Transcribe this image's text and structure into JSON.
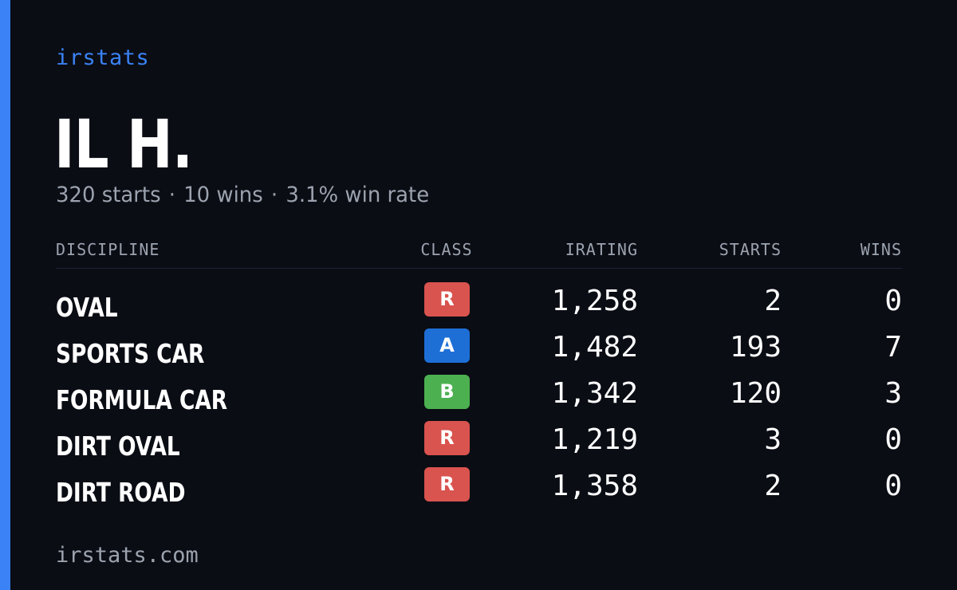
{
  "brand": "irstats",
  "driver": {
    "name": "IL H.",
    "starts_text": "320 starts",
    "wins_text": "10 wins",
    "win_rate_text": "3.1% win rate",
    "separator": "·"
  },
  "table": {
    "headers": {
      "discipline": "DISCIPLINE",
      "class": "CLASS",
      "irating": "IRATING",
      "starts": "STARTS",
      "wins": "WINS"
    },
    "rows": [
      {
        "discipline": "OVAL",
        "class": "R",
        "class_color": "#d9534f",
        "irating": "1,258",
        "starts": "2",
        "wins": "0"
      },
      {
        "discipline": "SPORTS CAR",
        "class": "A",
        "class_color": "#1d6fd6",
        "irating": "1,482",
        "starts": "193",
        "wins": "7"
      },
      {
        "discipline": "FORMULA CAR",
        "class": "B",
        "class_color": "#4caf50",
        "irating": "1,342",
        "starts": "120",
        "wins": "3"
      },
      {
        "discipline": "DIRT OVAL",
        "class": "R",
        "class_color": "#d9534f",
        "irating": "1,219",
        "starts": "3",
        "wins": "0"
      },
      {
        "discipline": "DIRT ROAD",
        "class": "R",
        "class_color": "#d9534f",
        "irating": "1,358",
        "starts": "2",
        "wins": "0"
      }
    ]
  },
  "footer": "irstats.com",
  "colors": {
    "accent": "#3b82f6",
    "background": "#0a0d14",
    "muted_text": "#9ca3af"
  }
}
